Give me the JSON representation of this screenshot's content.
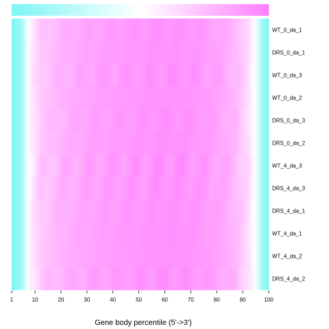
{
  "chart_data": {
    "type": "heatmap",
    "title": "",
    "xlabel": "Gene body percentile (5'->3')",
    "ylabel": "",
    "x_ticks": [
      1,
      10,
      20,
      30,
      40,
      50,
      60,
      70,
      80,
      90,
      100
    ],
    "x_range": [
      1,
      100
    ],
    "rows": [
      "WT_0_da_1",
      "DRS_0_da_1",
      "WT_0_da_3",
      "WT_0_da_2",
      "DRS_0_da_3",
      "DRS_0_da_2",
      "WT_4_da_3",
      "DRS_4_da_3",
      "DRS_4_da_1",
      "WT_4_da_1",
      "WT_4_da_2",
      "DRS_4_da_2"
    ],
    "value_range": [
      0,
      1
    ],
    "profile_knots": [
      [
        1,
        0.0
      ],
      [
        4,
        0.12
      ],
      [
        6,
        0.35
      ],
      [
        8,
        0.58
      ],
      [
        12,
        0.72
      ],
      [
        20,
        0.8
      ],
      [
        30,
        0.86
      ],
      [
        45,
        0.9
      ],
      [
        60,
        0.93
      ],
      [
        70,
        0.92
      ],
      [
        80,
        0.87
      ],
      [
        88,
        0.78
      ],
      [
        93,
        0.62
      ],
      [
        96,
        0.4
      ],
      [
        98,
        0.15
      ],
      [
        100,
        0.0
      ]
    ],
    "row_offsets": [
      0.02,
      0.01,
      0.03,
      0.0,
      0.02,
      0.01,
      0.04,
      0.03,
      0.02,
      0.01,
      0.0,
      0.03
    ],
    "colors": {
      "low": "#7ff5f5",
      "mid": "#ffffff",
      "high": "#ff80ff"
    },
    "color_bar": "top",
    "grid": false
  }
}
